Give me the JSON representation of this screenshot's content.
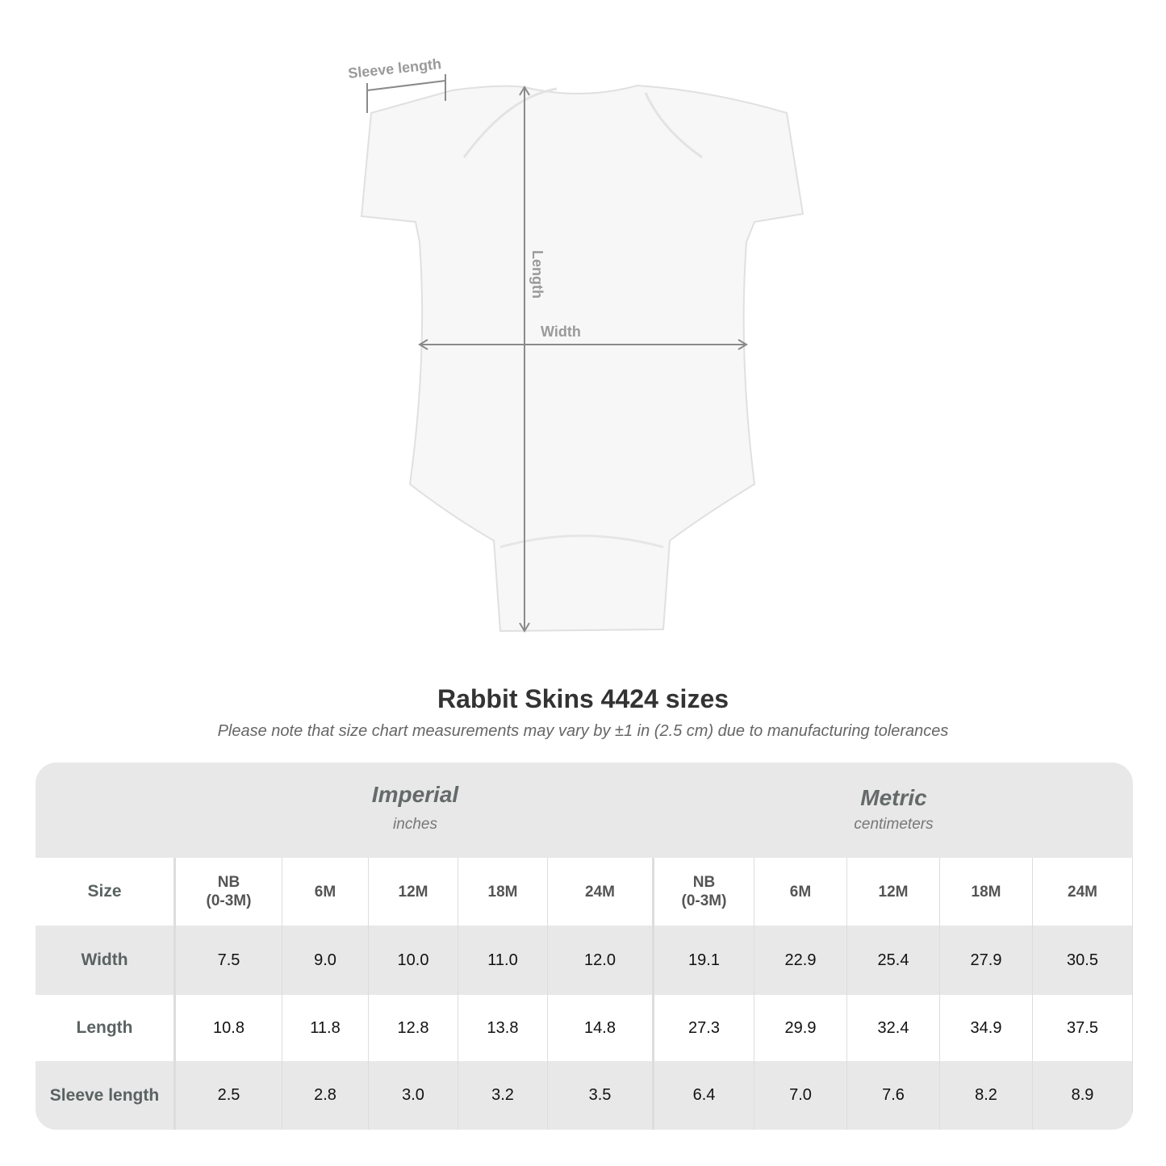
{
  "diagram": {
    "sleeve_label": "Sleeve length",
    "length_label": "Length",
    "width_label": "Width"
  },
  "title": "Rabbit Skins 4424 sizes",
  "note": "Please note that size chart measurements may vary by ±1 in (2.5 cm) due to manufacturing tolerances",
  "table": {
    "imperial": {
      "name": "Imperial",
      "unit": "inches"
    },
    "metric": {
      "name": "Metric",
      "unit": "centimeters"
    },
    "size_label": "Size",
    "sizes": [
      "NB\n(0-3M)",
      "6M",
      "12M",
      "18M",
      "24M",
      "NB\n(0-3M)",
      "6M",
      "12M",
      "18M",
      "24M"
    ],
    "rows": [
      {
        "label": "Width",
        "values": [
          "7.5",
          "9.0",
          "10.0",
          "11.0",
          "12.0",
          "19.1",
          "22.9",
          "25.4",
          "27.9",
          "30.5"
        ]
      },
      {
        "label": "Length",
        "values": [
          "10.8",
          "11.8",
          "12.8",
          "13.8",
          "14.8",
          "27.3",
          "29.9",
          "32.4",
          "34.9",
          "37.5"
        ]
      },
      {
        "label": "Sleeve length",
        "values": [
          "2.5",
          "2.8",
          "3.0",
          "3.2",
          "3.5",
          "6.4",
          "7.0",
          "7.6",
          "8.2",
          "8.9"
        ]
      }
    ]
  }
}
